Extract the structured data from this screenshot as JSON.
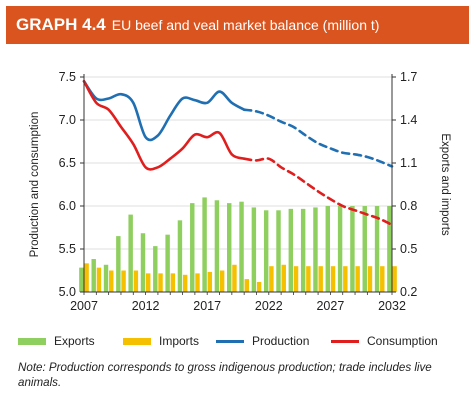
{
  "header": {
    "number": "GRAPH 4.4",
    "title": "EU beef and veal market balance (million t)"
  },
  "colors": {
    "header_bg": "#d9541e",
    "exports": "#8fcf5f",
    "imports": "#f5c000",
    "production": "#1f6fb2",
    "consumption": "#e01e1e"
  },
  "legend": {
    "exports": "Exports",
    "imports": "Imports",
    "production": "Production",
    "consumption": "Consumption"
  },
  "note": "Note: Production corresponds to gross indigenous production; trade includes live animals.",
  "chart_data": {
    "type": "bar+line",
    "ylabel_left": "Production and consumption",
    "ylabel_right": "Exports and imports",
    "ylim_left": [
      5.0,
      7.5
    ],
    "ylim_right": [
      0.2,
      1.7
    ],
    "yticks_left": [
      "5.0",
      "5.5",
      "6.0",
      "6.5",
      "7.0",
      "7.5"
    ],
    "yticks_right": [
      "0.2",
      "0.5",
      "0.8",
      "1.1",
      "1.4",
      "1.7"
    ],
    "x_range": [
      2007,
      2032
    ],
    "xticks": [
      "2007",
      "2012",
      "2017",
      "2022",
      "2027",
      "2032"
    ],
    "projection_start": 2020,
    "bar_years": [
      2007,
      2008,
      2009,
      2010,
      2011,
      2012,
      2013,
      2014,
      2015,
      2016,
      2017,
      2018,
      2019,
      2020,
      2021,
      2022,
      2023,
      2024,
      2025,
      2026,
      2027,
      2028,
      2029,
      2030,
      2031,
      2032
    ],
    "exports": [
      0.37,
      0.43,
      0.39,
      0.59,
      0.74,
      0.61,
      0.52,
      0.6,
      0.7,
      0.82,
      0.86,
      0.84,
      0.82,
      0.83,
      0.79,
      0.77,
      0.77,
      0.78,
      0.78,
      0.79,
      0.8,
      0.8,
      0.8,
      0.8,
      0.8,
      0.8
    ],
    "imports": [
      0.4,
      0.37,
      0.35,
      0.35,
      0.35,
      0.33,
      0.33,
      0.33,
      0.32,
      0.33,
      0.34,
      0.35,
      0.39,
      0.29,
      0.27,
      0.38,
      0.39,
      0.38,
      0.38,
      0.38,
      0.38,
      0.38,
      0.38,
      0.38,
      0.38,
      0.38
    ],
    "line_years": [
      2007,
      2008,
      2009,
      2010,
      2011,
      2012,
      2013,
      2014,
      2015,
      2016,
      2017,
      2018,
      2019,
      2020,
      2021,
      2022,
      2023,
      2024,
      2025,
      2026,
      2027,
      2028,
      2029,
      2030,
      2031,
      2032
    ],
    "production": [
      7.45,
      7.25,
      7.25,
      7.3,
      7.2,
      6.8,
      6.82,
      7.05,
      7.25,
      7.23,
      7.2,
      7.33,
      7.2,
      7.12,
      7.1,
      7.05,
      6.98,
      6.92,
      6.82,
      6.73,
      6.67,
      6.62,
      6.6,
      6.57,
      6.52,
      6.46
    ],
    "consumption": [
      7.45,
      7.2,
      7.12,
      6.92,
      6.72,
      6.45,
      6.45,
      6.55,
      6.67,
      6.83,
      6.8,
      6.85,
      6.6,
      6.55,
      6.53,
      6.55,
      6.45,
      6.37,
      6.27,
      6.17,
      6.08,
      6.0,
      5.95,
      5.9,
      5.85,
      5.78
    ]
  }
}
